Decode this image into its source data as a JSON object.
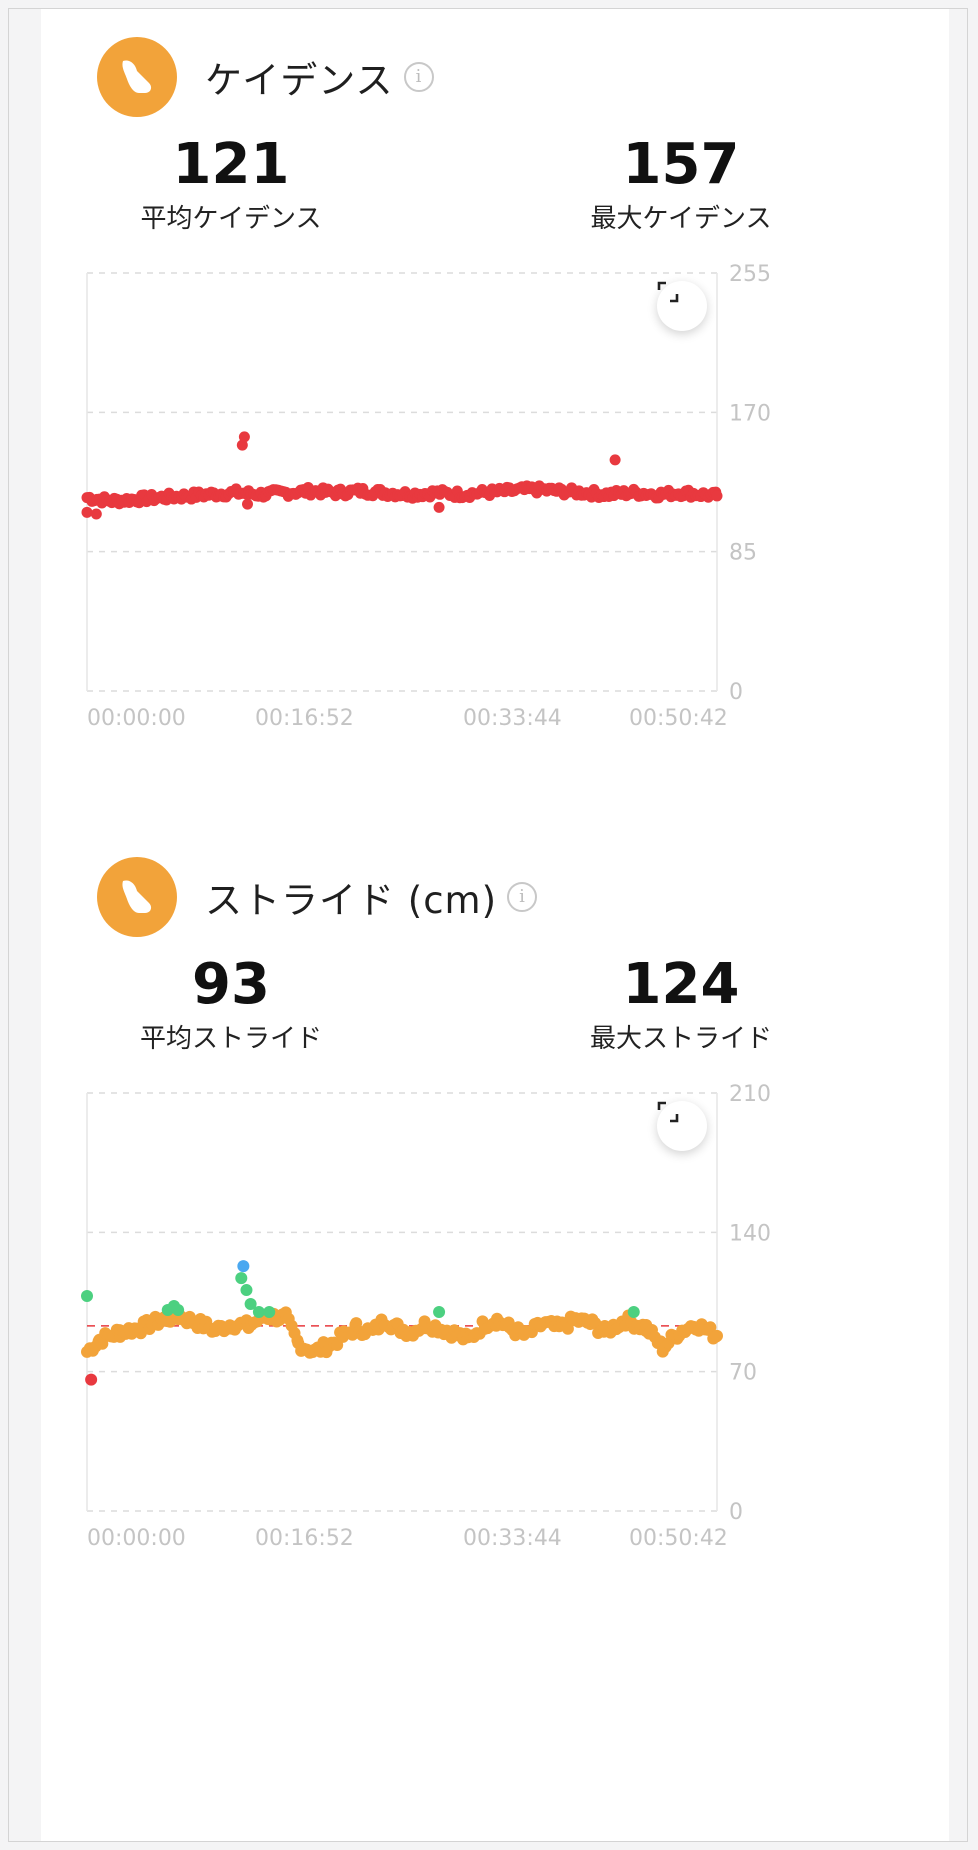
{
  "colors": {
    "accent": "#f2a33a",
    "cadence_point": "#e8393f",
    "stride_orange": "#f2a33a",
    "stride_green": "#4cd080",
    "stride_blue": "#4aa8f0",
    "stride_red": "#e8393f",
    "avg_line": "#e8393f"
  },
  "cadence": {
    "icon": "shoe-icon",
    "title": "ケイデンス",
    "avg_value": "121",
    "avg_label": "平均ケイデンス",
    "max_value": "157",
    "max_label": "最大ケイデンス",
    "chart_data": {
      "type": "scatter",
      "ylim": [
        0,
        255
      ],
      "y_ticks": [
        "255",
        "170",
        "85",
        "0"
      ],
      "x_ticks": [
        "00:00:00",
        "00:16:52",
        "00:33:44",
        "00:50:42"
      ],
      "x_range_seconds": [
        0,
        3042
      ],
      "baseline_points": [
        [
          0,
          118
        ],
        [
          120,
          116
        ],
        [
          240,
          117
        ],
        [
          360,
          118
        ],
        [
          480,
          119
        ],
        [
          600,
          120
        ],
        [
          720,
          121
        ],
        [
          840,
          120
        ],
        [
          960,
          121
        ],
        [
          1080,
          122
        ],
        [
          1200,
          121
        ],
        [
          1320,
          122
        ],
        [
          1440,
          121
        ],
        [
          1560,
          120
        ],
        [
          1680,
          121
        ],
        [
          1800,
          120
        ],
        [
          1920,
          121
        ],
        [
          2040,
          122
        ],
        [
          2160,
          123
        ],
        [
          2280,
          122
        ],
        [
          2400,
          121
        ],
        [
          2520,
          120
        ],
        [
          2640,
          121
        ],
        [
          2760,
          120
        ],
        [
          2880,
          121
        ],
        [
          3042,
          119
        ]
      ],
      "outliers": [
        [
          0,
          109
        ],
        [
          45,
          108
        ],
        [
          750,
          150
        ],
        [
          760,
          155
        ],
        [
          775,
          114
        ],
        [
          1700,
          112
        ],
        [
          2550,
          141
        ]
      ]
    }
  },
  "stride": {
    "icon": "shoe-icon",
    "title": "ストライド (cm)",
    "avg_value": "93",
    "avg_label": "平均ストライド",
    "max_value": "124",
    "max_label": "最大ストライド",
    "chart_data": {
      "type": "scatter",
      "ylim": [
        0,
        210
      ],
      "y_ticks": [
        "210",
        "140",
        "70",
        "0"
      ],
      "x_ticks": [
        "00:00:00",
        "00:16:52",
        "00:33:44",
        "00:50:42"
      ],
      "x_range_seconds": [
        0,
        3042
      ],
      "average_line": 93,
      "series": [
        {
          "color_key": "stride_orange",
          "points": [
            [
              0,
              80
            ],
            [
              60,
              86
            ],
            [
              160,
              90
            ],
            [
              260,
              92
            ],
            [
              360,
              96
            ],
            [
              440,
              98
            ],
            [
              520,
              95
            ],
            [
              620,
              91
            ],
            [
              700,
              94
            ],
            [
              780,
              93
            ],
            [
              860,
              98
            ],
            [
              960,
              97
            ],
            [
              1020,
              84
            ],
            [
              1100,
              80
            ],
            [
              1180,
              84
            ],
            [
              1240,
              88
            ],
            [
              1300,
              92
            ],
            [
              1380,
              90
            ],
            [
              1440,
              96
            ],
            [
              1500,
              92
            ],
            [
              1560,
              90
            ],
            [
              1640,
              94
            ],
            [
              1760,
              90
            ],
            [
              1840,
              86
            ],
            [
              1920,
              94
            ],
            [
              1980,
              96
            ],
            [
              2040,
              92
            ],
            [
              2120,
              88
            ],
            [
              2200,
              94
            ],
            [
              2280,
              92
            ],
            [
              2360,
              96
            ],
            [
              2440,
              94
            ],
            [
              2500,
              90
            ],
            [
              2600,
              96
            ],
            [
              2700,
              92
            ],
            [
              2780,
              82
            ],
            [
              2860,
              90
            ],
            [
              2940,
              94
            ],
            [
              3042,
              88
            ]
          ]
        },
        {
          "color_key": "stride_green",
          "points": [
            [
              0,
              108
            ],
            [
              390,
              101
            ],
            [
              420,
              103
            ],
            [
              440,
              101
            ],
            [
              745,
              117
            ],
            [
              770,
              111
            ],
            [
              790,
              104
            ],
            [
              830,
              100
            ],
            [
              880,
              100
            ],
            [
              1700,
              100
            ],
            [
              2640,
              100
            ]
          ]
        },
        {
          "color_key": "stride_blue",
          "points": [
            [
              755,
              123
            ]
          ]
        },
        {
          "color_key": "stride_red",
          "points": [
            [
              20,
              66
            ]
          ]
        }
      ]
    }
  }
}
